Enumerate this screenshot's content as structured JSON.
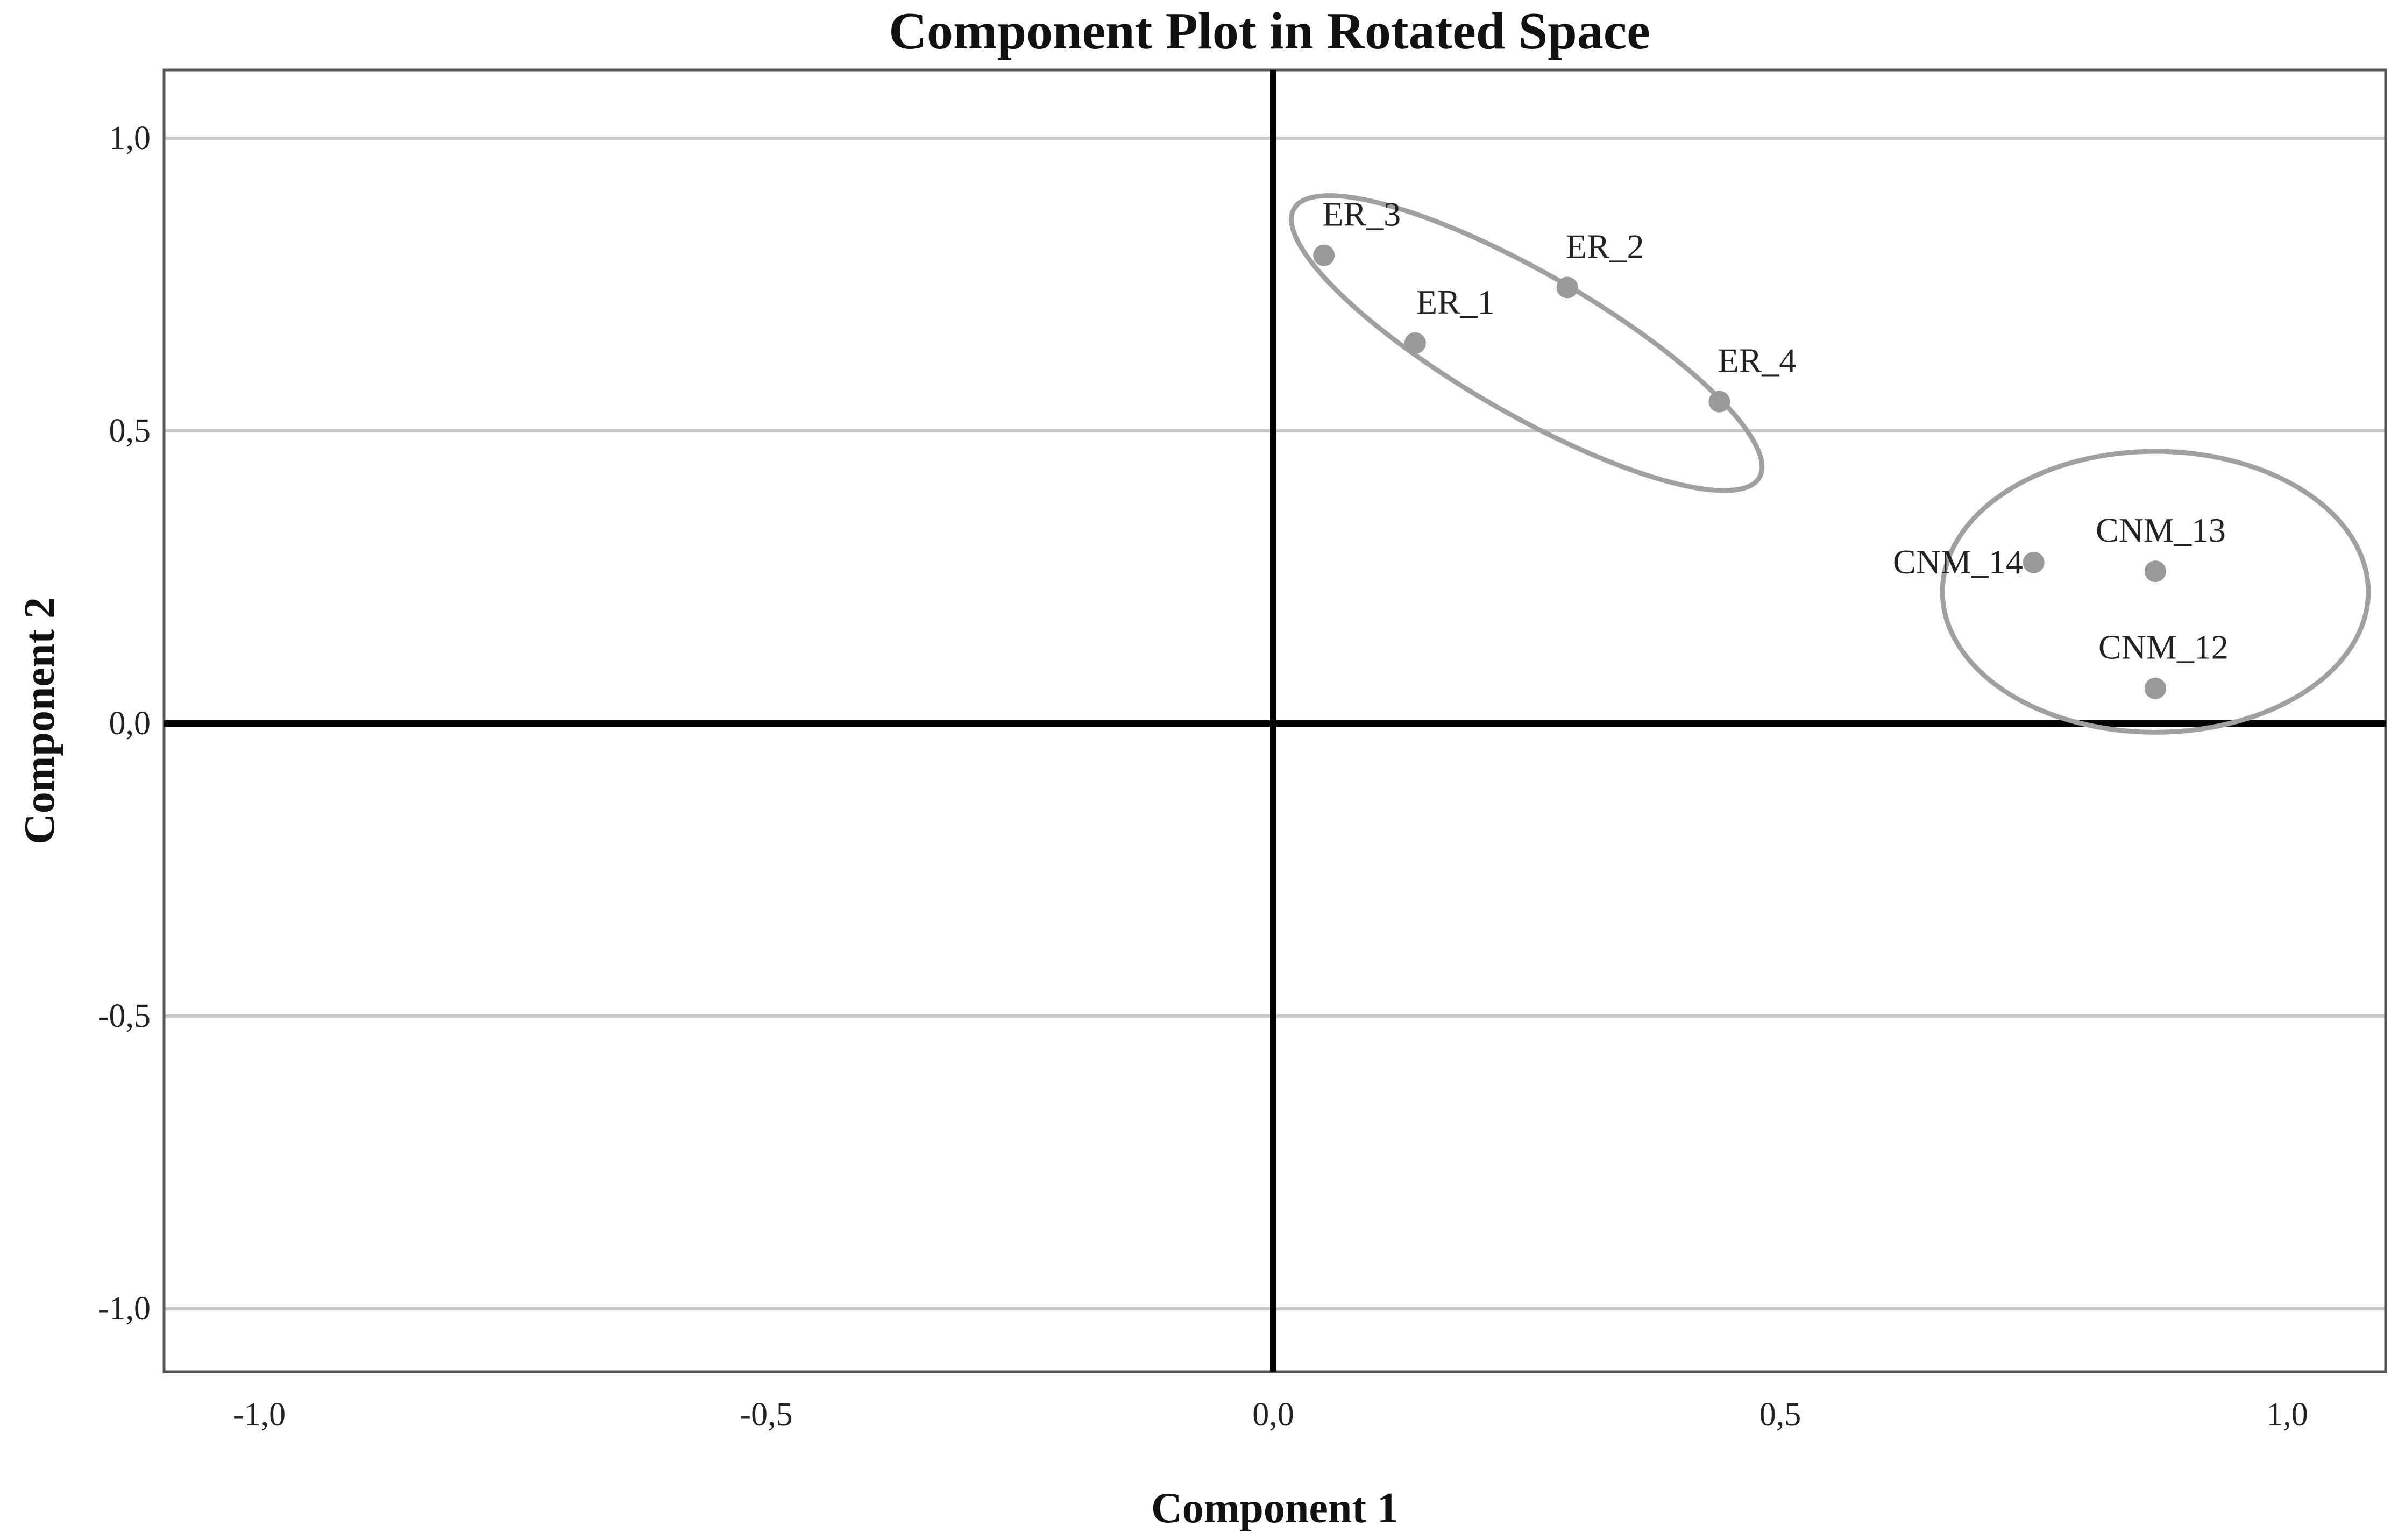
{
  "chart_data": {
    "type": "scatter",
    "title": "Component Plot in Rotated Space",
    "xlabel": "Component 1",
    "ylabel": "Component 2",
    "xlim": [
      -1.1,
      1.1
    ],
    "ylim": [
      -1.11,
      1.11
    ],
    "xticks": [
      -1.0,
      -0.5,
      0.0,
      0.5,
      1.0
    ],
    "yticks": [
      -1.0,
      -0.5,
      0.0,
      0.5,
      1.0
    ],
    "xtick_labels": [
      "-1,0",
      "-0,5",
      "0,0",
      "0,5",
      "1,0"
    ],
    "ytick_labels": [
      "-1,0",
      "-0,5",
      "0,0",
      "0,5",
      "1,0"
    ],
    "grid": "horizontal",
    "point_color": "#999999",
    "cluster_color": "#a0a0a0",
    "points": [
      {
        "label": "ER_3",
        "x": 0.05,
        "y": 0.8
      },
      {
        "label": "ER_1",
        "x": 0.14,
        "y": 0.65
      },
      {
        "label": "ER_2",
        "x": 0.29,
        "y": 0.745
      },
      {
        "label": "ER_4",
        "x": 0.44,
        "y": 0.55
      },
      {
        "label": "CNM_14",
        "x": 0.75,
        "y": 0.275
      },
      {
        "label": "CNM_13",
        "x": 0.87,
        "y": 0.26
      },
      {
        "label": "CNM_12",
        "x": 0.87,
        "y": 0.06
      }
    ],
    "clusters": [
      {
        "cx": 0.25,
        "cy": 0.65,
        "rx": 0.265,
        "ry": 0.12,
        "rotation_deg": -30
      },
      {
        "cx": 0.87,
        "cy": 0.225,
        "rx": 0.21,
        "ry": 0.24,
        "rotation_deg": 0
      }
    ]
  }
}
